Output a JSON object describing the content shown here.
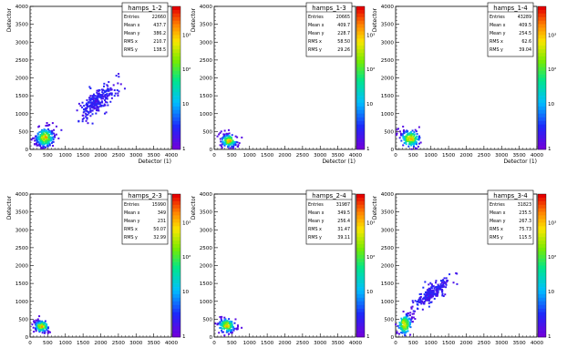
{
  "chart_data": [
    {
      "type": "heatmap",
      "title": "hamps_1-2",
      "xlabel": "Detector (1)",
      "ylabel": "Detector",
      "xlim": [
        0,
        4000
      ],
      "ylim": [
        0,
        4000
      ],
      "zscale": "log",
      "stats": [
        [
          "Entries",
          "22660"
        ],
        [
          "Mean x",
          "437.7"
        ],
        [
          "Mean y",
          "386.2"
        ],
        [
          "RMS x",
          "210.7"
        ],
        [
          "RMS y",
          "138.5"
        ]
      ],
      "clusters": [
        {
          "cx": 420,
          "cy": 330,
          "sx": 140,
          "sy": 140,
          "n": 230,
          "hot": true,
          "corr": 0.2
        },
        {
          "cx": 1900,
          "cy": 1350,
          "sx": 280,
          "sy": 260,
          "n": 260,
          "hot": false,
          "corr": 0.75
        }
      ]
    },
    {
      "type": "heatmap",
      "title": "hamps_1-3",
      "xlabel": "Detector (1)",
      "ylabel": "Detector",
      "xlim": [
        0,
        4000
      ],
      "ylim": [
        0,
        4000
      ],
      "zscale": "log",
      "stats": [
        [
          "Entries",
          "20665"
        ],
        [
          "Mean x",
          "409.7"
        ],
        [
          "Mean y",
          "228.7"
        ],
        [
          "RMS x",
          "58.50"
        ],
        [
          "RMS y",
          "29.26"
        ]
      ],
      "clusters": [
        {
          "cx": 420,
          "cy": 240,
          "sx": 120,
          "sy": 100,
          "n": 140,
          "hot": true,
          "corr": -0.3
        }
      ]
    },
    {
      "type": "heatmap",
      "title": "hamps_1-4",
      "xlabel": "Detector (1)",
      "ylabel": "Detector",
      "xlim": [
        0,
        4000
      ],
      "ylim": [
        0,
        4000
      ],
      "zscale": "log",
      "stats": [
        [
          "Entries",
          "43289"
        ],
        [
          "Mean x",
          "409.5"
        ],
        [
          "Mean y",
          "254.5"
        ],
        [
          "RMS x",
          "62.6"
        ],
        [
          "RMS y",
          "39.04"
        ]
      ],
      "clusters": [
        {
          "cx": 420,
          "cy": 300,
          "sx": 150,
          "sy": 130,
          "n": 170,
          "hot": true,
          "corr": -0.4
        }
      ]
    },
    {
      "type": "heatmap",
      "title": "hamps_2-3",
      "xlabel": "",
      "ylabel": "Detector",
      "xlim": [
        0,
        4000
      ],
      "ylim": [
        0,
        4000
      ],
      "zscale": "log",
      "stats": [
        [
          "Entries",
          "15990"
        ],
        [
          "Mean x",
          "349"
        ],
        [
          "Mean y",
          "231"
        ],
        [
          "RMS x",
          "50.07"
        ],
        [
          "RMS y",
          "32.99"
        ]
      ],
      "clusters": [
        {
          "cx": 330,
          "cy": 300,
          "sx": 110,
          "sy": 90,
          "n": 140,
          "hot": true,
          "corr": -0.3
        }
      ]
    },
    {
      "type": "heatmap",
      "title": "hamps_2-4",
      "xlabel": "",
      "ylabel": "Detector",
      "xlim": [
        0,
        4000
      ],
      "ylim": [
        0,
        4000
      ],
      "zscale": "log",
      "stats": [
        [
          "Entries",
          "31987"
        ],
        [
          "Mean x",
          "349.5"
        ],
        [
          "Mean y",
          "256.4"
        ],
        [
          "RMS x",
          "31.47"
        ],
        [
          "RMS y",
          "39.11"
        ]
      ],
      "clusters": [
        {
          "cx": 360,
          "cy": 320,
          "sx": 130,
          "sy": 110,
          "n": 150,
          "hot": true,
          "corr": -0.3
        }
      ]
    },
    {
      "type": "heatmap",
      "title": "hamps_3-4",
      "xlabel": "",
      "ylabel": "Detector",
      "xlim": [
        0,
        4000
      ],
      "ylim": [
        0,
        4000
      ],
      "zscale": "log",
      "stats": [
        [
          "Entries",
          "31823"
        ],
        [
          "Mean x",
          "235.5"
        ],
        [
          "Mean y",
          "267.3"
        ],
        [
          "RMS x",
          "75.73"
        ],
        [
          "RMS y",
          "115.5"
        ]
      ],
      "clusters": [
        {
          "cx": 260,
          "cy": 350,
          "sx": 110,
          "sy": 160,
          "n": 150,
          "hot": true,
          "corr": 0.4
        },
        {
          "cx": 1050,
          "cy": 1250,
          "sx": 240,
          "sy": 190,
          "n": 260,
          "hot": false,
          "corr": 0.8
        }
      ]
    }
  ],
  "axis_ticks_x": [
    "0",
    "500",
    "1000",
    "1500",
    "2000",
    "2500",
    "3000",
    "3500",
    "4000"
  ],
  "axis_ticks_y": [
    "0",
    "500",
    "1000",
    "1500",
    "2000",
    "2500",
    "3000",
    "3500",
    "4000"
  ],
  "colorbar_labels": [
    "10³",
    "10²",
    "10",
    "1"
  ]
}
